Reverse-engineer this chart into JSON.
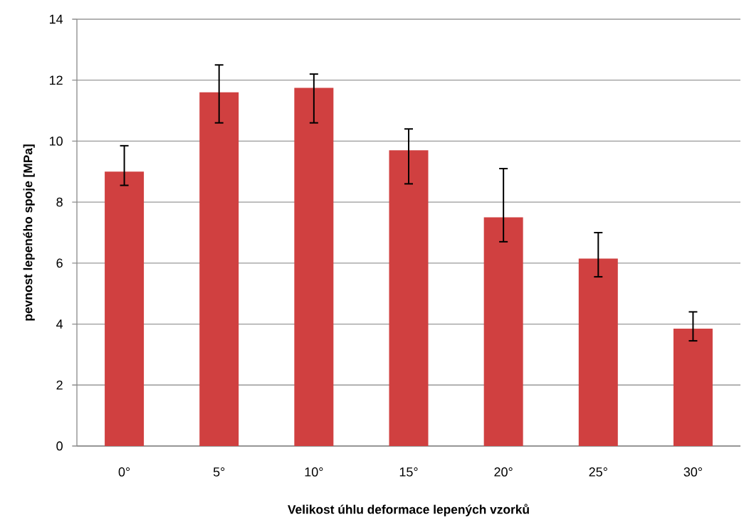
{
  "chart_data": {
    "type": "bar",
    "xlabel": "Velikost úhlu deformace lepených vzorků",
    "ylabel": "pevnost lepeného spoje [MPa]",
    "categories": [
      "0°",
      "5°",
      "10°",
      "15°",
      "20°",
      "25°",
      "30°"
    ],
    "values": [
      9.0,
      11.6,
      11.75,
      9.7,
      7.5,
      6.15,
      3.85
    ],
    "errors": [
      [
        8.55,
        9.85
      ],
      [
        10.6,
        12.5
      ],
      [
        10.6,
        12.2
      ],
      [
        8.6,
        10.4
      ],
      [
        6.7,
        9.1
      ],
      [
        5.55,
        7.0
      ],
      [
        3.45,
        4.4
      ]
    ],
    "color": "#d04040",
    "ylim": [
      0,
      14
    ],
    "yticks": [
      0,
      2,
      4,
      6,
      8,
      10,
      12,
      14
    ],
    "grid": "y"
  }
}
